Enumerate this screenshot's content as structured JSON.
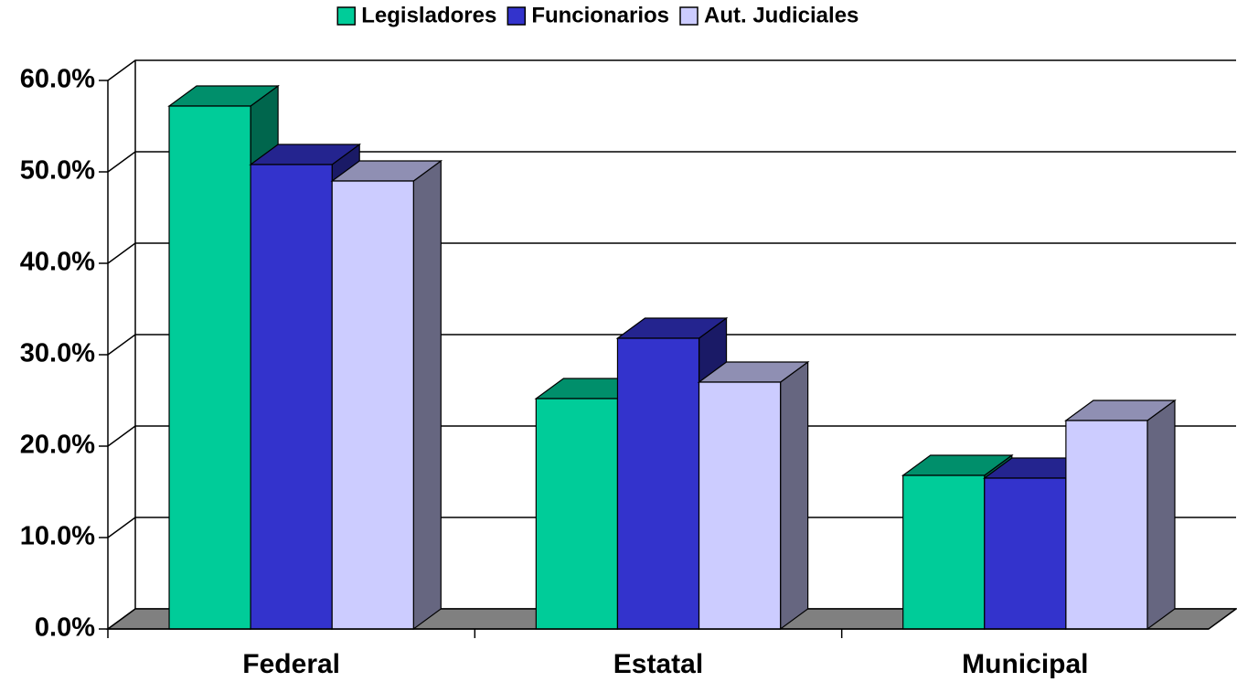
{
  "chart_data": {
    "type": "bar3d",
    "categories": [
      "Federal",
      "Estatal",
      "Municipal"
    ],
    "series": [
      {
        "name": "Legisladores",
        "color": "#00cc99",
        "values": [
          57.2,
          25.2,
          16.8
        ]
      },
      {
        "name": "Funcionarios",
        "color": "#3333cc",
        "values": [
          50.8,
          31.8,
          16.5
        ]
      },
      {
        "name": "Aut. Judiciales",
        "color": "#ccccff",
        "values": [
          49.0,
          27.0,
          22.8
        ]
      }
    ],
    "ylim": [
      0,
      60
    ],
    "yticks": [
      {
        "value": 0,
        "label": "0.0%"
      },
      {
        "value": 10,
        "label": "10.0%"
      },
      {
        "value": 20,
        "label": "20.0%"
      },
      {
        "value": 30,
        "label": "30.0%"
      },
      {
        "value": 40,
        "label": "40.0%"
      },
      {
        "value": 50,
        "label": "50.0%"
      },
      {
        "value": 60,
        "label": "60.0%"
      }
    ],
    "grid": true,
    "legend": "top"
  }
}
